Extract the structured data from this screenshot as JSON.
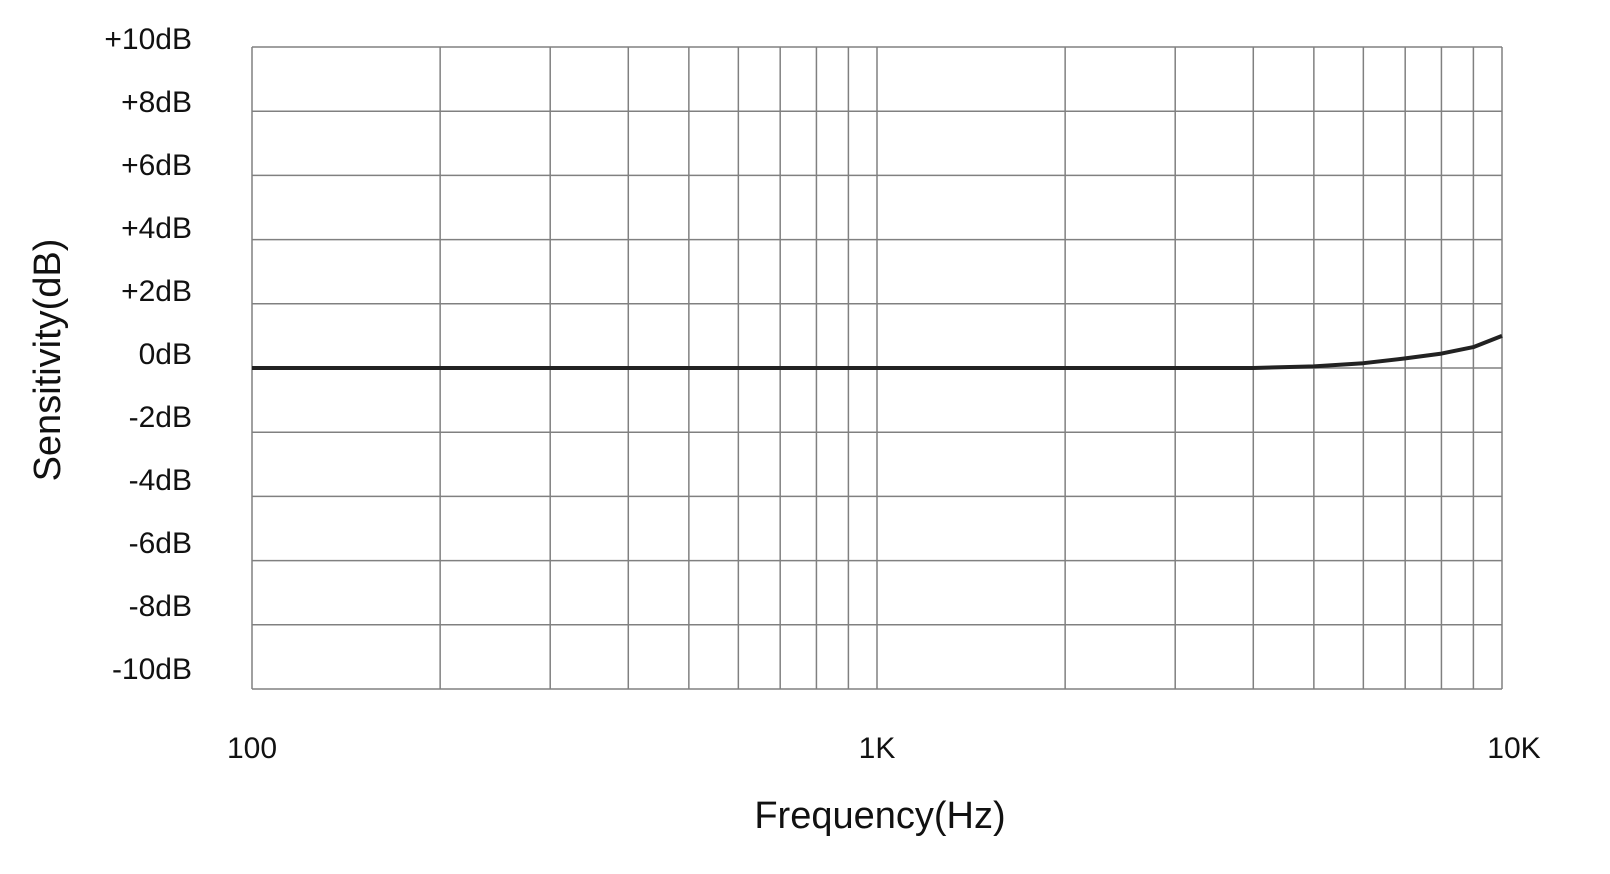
{
  "chart_data": {
    "type": "line",
    "title": "",
    "xlabel": "Frequency(Hz)",
    "ylabel": "Sensitivity(dB)",
    "x_scale": "log",
    "xlim": [
      100,
      10000
    ],
    "ylim": [
      -10,
      10
    ],
    "grid": true,
    "x_ticks": [
      {
        "value": 100,
        "label": "100"
      },
      {
        "value": 1000,
        "label": "1K"
      },
      {
        "value": 10000,
        "label": "10K"
      }
    ],
    "y_ticks": [
      {
        "value": 10,
        "label": "+10dB"
      },
      {
        "value": 8,
        "label": "+8dB"
      },
      {
        "value": 6,
        "label": "+6dB"
      },
      {
        "value": 4,
        "label": "+4dB"
      },
      {
        "value": 2,
        "label": "+2dB"
      },
      {
        "value": 0,
        "label": "0dB"
      },
      {
        "value": -2,
        "label": "-2dB"
      },
      {
        "value": -4,
        "label": "-4dB"
      },
      {
        "value": -6,
        "label": "-6dB"
      },
      {
        "value": -8,
        "label": "-8dB"
      },
      {
        "value": -10,
        "label": "-10dB"
      }
    ],
    "series": [
      {
        "x": [
          100,
          1000,
          4000,
          5000,
          6000,
          7000,
          8000,
          9000,
          10000
        ],
        "y": [
          0,
          0,
          0,
          0.05,
          0.15,
          0.3,
          0.45,
          0.65,
          1.0
        ],
        "color": "#222222"
      }
    ],
    "colors": {
      "grid": "#808080",
      "line": "#222222"
    }
  }
}
